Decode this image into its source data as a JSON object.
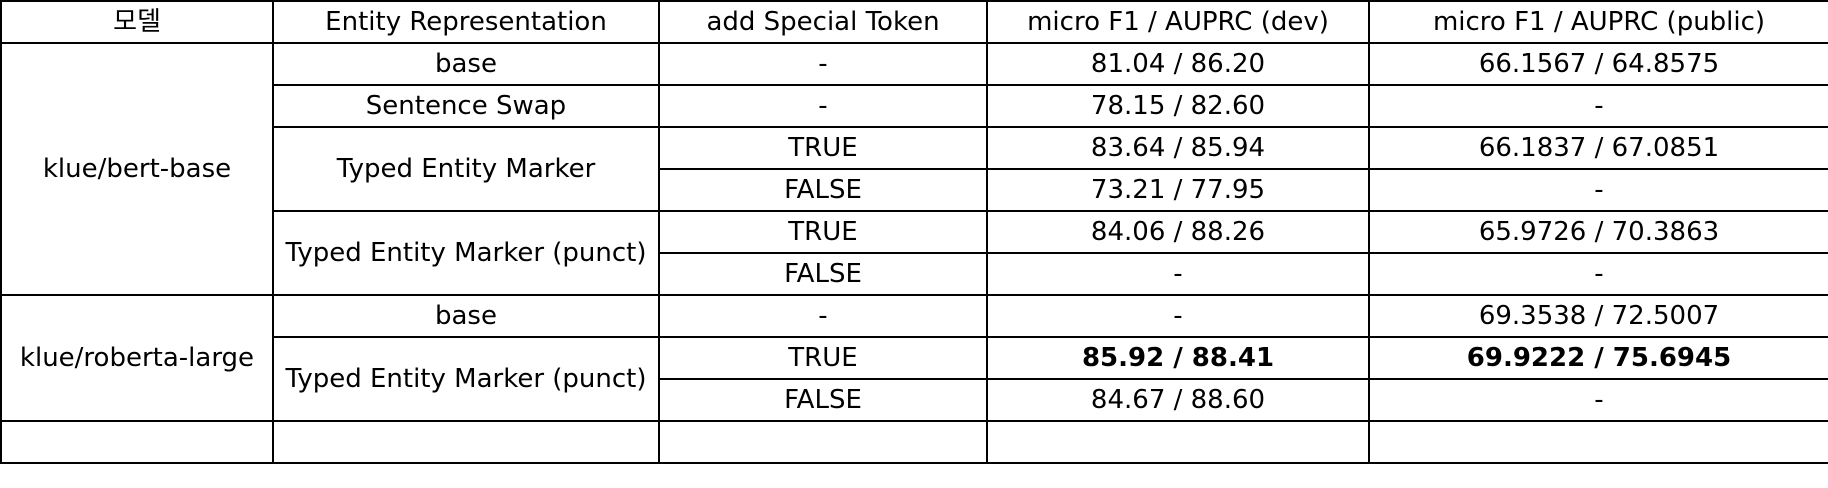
{
  "table": {
    "headers": {
      "model": "모델",
      "entity_representation": "Entity Representation",
      "add_special_token": "add Special Token",
      "dev": "micro F1 / AUPRC (dev)",
      "public": "micro F1 / AUPRC (public)"
    },
    "groups": [
      {
        "model": "klue/bert-base",
        "rows": [
          {
            "representation": "base",
            "special_token": "-",
            "dev": "81.04 / 86.20",
            "public": "66.1567 / 64.8575"
          },
          {
            "representation": "Sentence Swap",
            "special_token": "-",
            "dev": "78.15 / 82.60",
            "public": "-"
          },
          {
            "representation": "Typed Entity Marker",
            "special_token": "TRUE",
            "dev": "83.64 / 85.94",
            "public": "66.1837 / 67.0851"
          },
          {
            "special_token": "FALSE",
            "dev": "73.21 / 77.95",
            "public": "-"
          },
          {
            "representation": "Typed Entity Marker (punct)",
            "special_token": "TRUE",
            "dev": "84.06 / 88.26",
            "public": "65.9726 / 70.3863"
          },
          {
            "special_token": "FALSE",
            "dev": "-",
            "public": "-"
          }
        ]
      },
      {
        "model": "klue/roberta-large",
        "rows": [
          {
            "representation": "base",
            "special_token": "-",
            "dev": "-",
            "public": "69.3538 / 72.5007"
          },
          {
            "representation": "Typed Entity Marker (punct)",
            "special_token": "TRUE",
            "dev": "85.92 / 88.41",
            "public": "69.9222 / 75.6945"
          },
          {
            "special_token": "FALSE",
            "dev": "84.67 / 88.60",
            "public": "-"
          }
        ]
      }
    ]
  }
}
